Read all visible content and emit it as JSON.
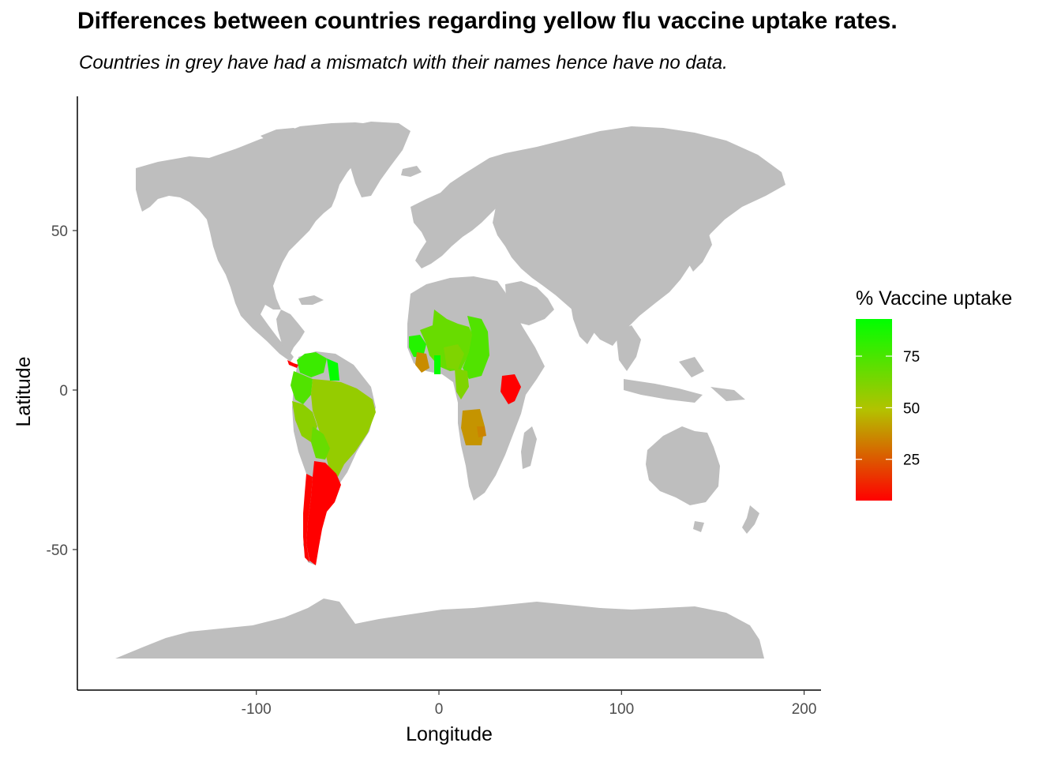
{
  "title": "Differences between countries regarding yellow flu vaccine uptake rates.",
  "subtitle": "Countries in grey have had a mismatch with their names hence have no data.",
  "chart_data": {
    "type": "choropleth",
    "xlabel": "Longitude",
    "ylabel": "Latitude",
    "xlim": [
      -180,
      190
    ],
    "ylim": [
      -90,
      92
    ],
    "x_ticks": [
      -100,
      0,
      100,
      200
    ],
    "x_tick_labels": [
      "-100",
      "0",
      "100",
      "200"
    ],
    "y_ticks": [
      -50,
      0,
      50
    ],
    "y_tick_labels": [
      "-50",
      "0",
      "50"
    ],
    "no_data_color": "#bebebe",
    "legend": {
      "title": "% Vaccine uptake",
      "position": "right",
      "range": [
        5,
        93
      ],
      "breaks": [
        25,
        50,
        75
      ],
      "break_labels": [
        "25",
        "50",
        "75"
      ],
      "low_color": "#ff0000",
      "high_color": "#00ff00"
    },
    "regions": [
      {
        "value": 80
      },
      {
        "value": 75
      },
      {
        "value": 92
      },
      {
        "value": 60
      },
      {
        "value": 62
      },
      {
        "value": 70
      },
      {
        "value": 5
      },
      {
        "value": 5
      },
      {
        "value": 85
      },
      {
        "value": 70
      },
      {
        "value": 75
      },
      {
        "value": 40
      },
      {
        "value": 92
      },
      {
        "value": 65
      },
      {
        "value": 42
      },
      {
        "value": 38
      },
      {
        "value": 65
      },
      {
        "value": 5
      },
      {
        "value": 6
      }
    ]
  }
}
